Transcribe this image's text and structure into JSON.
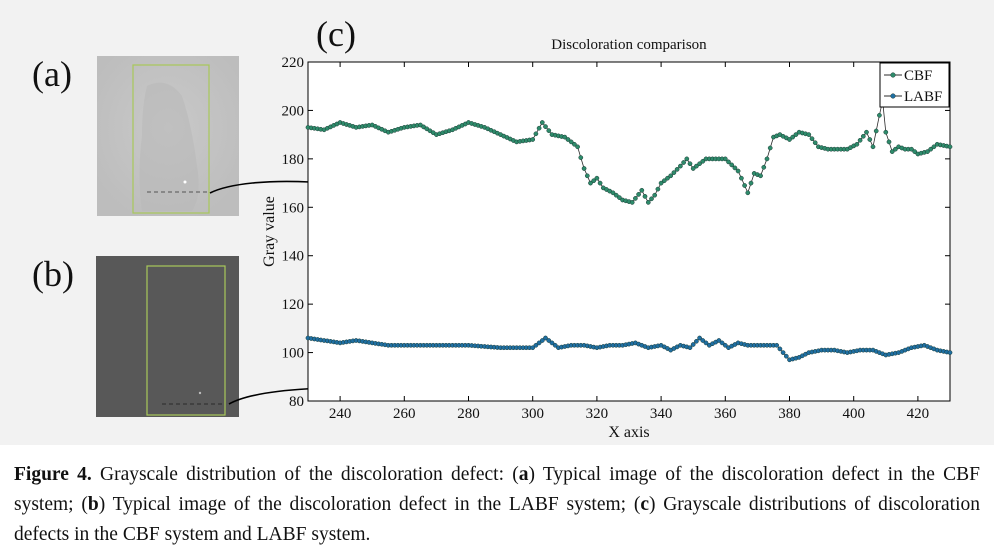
{
  "panels": {
    "a_label": "(a)",
    "b_label": "(b)",
    "c_label": "(c)"
  },
  "chart_data": {
    "type": "line",
    "title": "Discoloration comparison",
    "xlabel": "X axis",
    "ylabel": "Gray value",
    "xlim": [
      230,
      430
    ],
    "ylim": [
      80,
      220
    ],
    "xticks": [
      240,
      260,
      280,
      300,
      320,
      340,
      360,
      380,
      400,
      420
    ],
    "yticks": [
      80,
      100,
      120,
      140,
      160,
      180,
      200,
      220
    ],
    "legend_position": "top-right",
    "series": [
      {
        "name": "CBF",
        "color": "#2e8b6b",
        "x": [
          230,
          235,
          240,
          245,
          250,
          255,
          260,
          265,
          270,
          275,
          280,
          285,
          290,
          295,
          300,
          303,
          306,
          310,
          314,
          316,
          318,
          320,
          322,
          325,
          328,
          331,
          334,
          336,
          338,
          340,
          343,
          346,
          348,
          350,
          352,
          354,
          356,
          360,
          364,
          367,
          369,
          371,
          373,
          375,
          377,
          380,
          383,
          386,
          389,
          392,
          395,
          398,
          401,
          404,
          406,
          408,
          409,
          410,
          412,
          414,
          416,
          418,
          420,
          423,
          426,
          430
        ],
        "y": [
          193,
          192,
          195,
          193,
          194,
          191,
          193,
          194,
          190,
          192,
          195,
          193,
          190,
          187,
          188,
          195,
          190,
          189,
          185,
          176,
          170,
          172,
          168,
          166,
          163,
          162,
          167,
          162,
          165,
          170,
          173,
          177,
          180,
          176,
          178,
          180,
          180,
          180,
          175,
          166,
          174,
          173,
          180,
          189,
          190,
          188,
          191,
          190,
          185,
          184,
          184,
          184,
          186,
          191,
          185,
          198,
          204,
          191,
          183,
          185,
          184,
          184,
          182,
          183,
          186,
          185
        ]
      },
      {
        "name": "LABF",
        "color": "#1f6fa3",
        "x": [
          230,
          235,
          240,
          245,
          250,
          255,
          260,
          270,
          280,
          290,
          300,
          304,
          308,
          312,
          316,
          320,
          324,
          328,
          332,
          336,
          340,
          343,
          346,
          349,
          352,
          355,
          358,
          361,
          364,
          367,
          370,
          373,
          376,
          378,
          380,
          383,
          386,
          390,
          394,
          398,
          402,
          406,
          410,
          414,
          418,
          422,
          426,
          430
        ],
        "y": [
          106,
          105,
          104,
          105,
          104,
          103,
          103,
          103,
          103,
          102,
          102,
          106,
          102,
          103,
          103,
          102,
          103,
          103,
          104,
          102,
          103,
          101,
          103,
          102,
          106,
          103,
          105,
          102,
          104,
          103,
          103,
          103,
          103,
          100,
          97,
          98,
          100,
          101,
          101,
          100,
          101,
          101,
          99,
          100,
          102,
          103,
          101,
          100
        ]
      }
    ]
  },
  "caption": {
    "label": "Figure 4.",
    "text_1": " Grayscale distribution of the discoloration defect: (",
    "a": "a",
    "text_2": ") Typical image of the discoloration defect in the CBF system; (",
    "b": "b",
    "text_3": ") Typical image of the discoloration defect in the LABF system; (",
    "c": "c",
    "text_4": ") Grayscale distributions of discoloration defects in the CBF system and LABF system."
  }
}
